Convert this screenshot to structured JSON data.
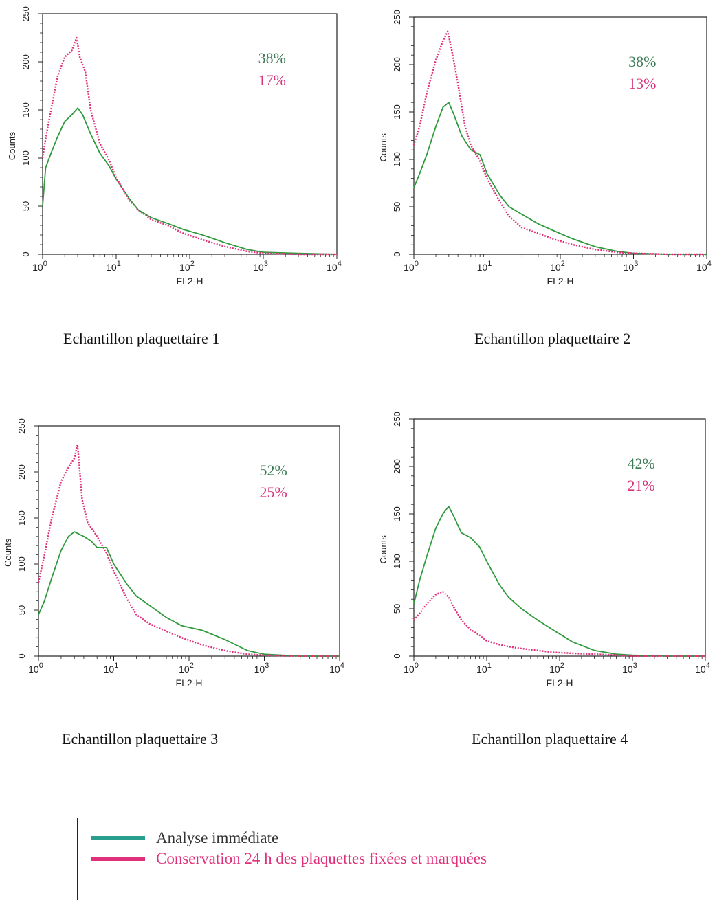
{
  "colors": {
    "green": "#2e9a3c",
    "pink": "#e0307a",
    "green_text": "#3a7a55",
    "pink_text": "#d8337a",
    "axis": "#222222"
  },
  "legend": {
    "items": [
      {
        "label": "Analyse immédiate",
        "color": "#2a9e8c"
      },
      {
        "label": "Conservation 24 h des plaquettes fixées et marquées",
        "color": "#e0307a"
      }
    ]
  },
  "chart_data": [
    {
      "type": "line",
      "caption": "Echantillon plaquettaire 1",
      "xlabel": "FL2-H",
      "ylabel": "Counts",
      "xscale": "log",
      "xlim": [
        1,
        10000
      ],
      "ylim": [
        0,
        250
      ],
      "x_ticks": [
        "10^0",
        "10^1",
        "10^2",
        "10^3",
        "10^4"
      ],
      "y_ticks": [
        "0",
        "50",
        "100",
        "150",
        "200",
        "250"
      ],
      "percentages": [
        {
          "text": "38%",
          "series": "green"
        },
        {
          "text": "17%",
          "series": "pink"
        }
      ],
      "series": [
        {
          "color_key": "green",
          "style": "solid",
          "x": [
            1.0,
            1.1,
            1.3,
            1.6,
            2.0,
            2.5,
            3.0,
            3.5,
            4.5,
            6,
            8,
            10,
            15,
            20,
            30,
            50,
            80,
            150,
            300,
            600,
            1000,
            3000,
            10000
          ],
          "y": [
            50,
            90,
            105,
            122,
            138,
            145,
            152,
            145,
            125,
            105,
            92,
            78,
            58,
            46,
            38,
            32,
            26,
            20,
            12,
            5,
            2,
            1,
            0
          ]
        },
        {
          "color_key": "pink",
          "style": "dotted",
          "x": [
            1.0,
            1.1,
            1.3,
            1.6,
            2.0,
            2.5,
            2.9,
            3.2,
            3.8,
            4.5,
            6,
            8,
            10,
            15,
            20,
            30,
            50,
            80,
            150,
            300,
            600,
            1000,
            3000,
            10000
          ],
          "y": [
            100,
            120,
            150,
            185,
            205,
            212,
            225,
            205,
            190,
            150,
            115,
            98,
            80,
            56,
            46,
            36,
            30,
            22,
            15,
            8,
            3,
            1,
            0,
            0
          ]
        }
      ]
    },
    {
      "type": "line",
      "caption": "Echantillon plaquettaire 2",
      "xlabel": "FL2-H",
      "ylabel": "Counts",
      "xscale": "log",
      "xlim": [
        1,
        10000
      ],
      "ylim": [
        0,
        250
      ],
      "x_ticks": [
        "10^0",
        "10^1",
        "10^2",
        "10^3",
        "10^4"
      ],
      "y_ticks": [
        "0",
        "50",
        "100",
        "150",
        "200",
        "250"
      ],
      "percentages": [
        {
          "text": "38%",
          "series": "green"
        },
        {
          "text": "13%",
          "series": "pink"
        }
      ],
      "series": [
        {
          "color_key": "green",
          "style": "solid",
          "x": [
            1.0,
            1.2,
            1.5,
            2.0,
            2.5,
            3.0,
            3.5,
            4.5,
            6,
            8,
            10,
            15,
            20,
            30,
            50,
            80,
            150,
            300,
            600,
            1000,
            3000,
            10000
          ],
          "y": [
            70,
            85,
            105,
            135,
            155,
            160,
            148,
            125,
            110,
            105,
            85,
            62,
            50,
            42,
            32,
            25,
            16,
            8,
            3,
            1,
            0,
            0
          ]
        },
        {
          "color_key": "pink",
          "style": "dotted",
          "x": [
            1.0,
            1.2,
            1.5,
            2.0,
            2.5,
            2.9,
            3.3,
            4.0,
            5,
            6,
            8,
            10,
            15,
            20,
            30,
            50,
            80,
            150,
            300,
            600,
            1000,
            3000,
            10000
          ],
          "y": [
            115,
            135,
            170,
            205,
            225,
            235,
            215,
            180,
            135,
            115,
            98,
            80,
            55,
            40,
            28,
            22,
            16,
            10,
            5,
            2,
            1,
            0,
            0
          ]
        }
      ]
    },
    {
      "type": "line",
      "caption": "Echantillon plaquettaire 3",
      "xlabel": "FL2-H",
      "ylabel": "Counts",
      "xscale": "log",
      "xlim": [
        1,
        10000
      ],
      "ylim": [
        0,
        250
      ],
      "x_ticks": [
        "10^0",
        "10^1",
        "10^2",
        "10^3",
        "10^4"
      ],
      "y_ticks": [
        "0",
        "50",
        "100",
        "150",
        "200",
        "250"
      ],
      "percentages": [
        {
          "text": "52%",
          "series": "green"
        },
        {
          "text": "25%",
          "series": "pink"
        }
      ],
      "series": [
        {
          "color_key": "green",
          "style": "solid",
          "x": [
            1.0,
            1.2,
            1.5,
            2.0,
            2.5,
            3.0,
            4.0,
            5,
            6,
            8,
            10,
            15,
            20,
            30,
            50,
            80,
            150,
            300,
            600,
            1000,
            3000,
            10000
          ],
          "y": [
            45,
            60,
            85,
            115,
            130,
            135,
            130,
            125,
            118,
            118,
            100,
            78,
            65,
            55,
            42,
            33,
            28,
            18,
            6,
            2,
            0,
            0
          ]
        },
        {
          "color_key": "pink",
          "style": "dotted",
          "x": [
            1.0,
            1.2,
            1.5,
            2.0,
            2.5,
            3.0,
            3.3,
            3.8,
            4.5,
            6,
            8,
            10,
            15,
            20,
            30,
            50,
            80,
            150,
            300,
            600,
            1000,
            3000,
            10000
          ],
          "y": [
            80,
            110,
            150,
            190,
            205,
            215,
            230,
            170,
            145,
            130,
            112,
            92,
            62,
            45,
            35,
            27,
            20,
            12,
            6,
            2,
            1,
            0,
            0
          ]
        }
      ]
    },
    {
      "type": "line",
      "caption": "Echantillon plaquettaire 4",
      "xlabel": "FL2-H",
      "ylabel": "Counts",
      "xscale": "log",
      "xlim": [
        1,
        10000
      ],
      "ylim": [
        0,
        250
      ],
      "x_ticks": [
        "10^0",
        "10^1",
        "10^2",
        "10^3",
        "10^4"
      ],
      "y_ticks": [
        "0",
        "50",
        "100",
        "150",
        "200",
        "250"
      ],
      "percentages": [
        {
          "text": "42%",
          "series": "green"
        },
        {
          "text": "21%",
          "series": "pink"
        }
      ],
      "series": [
        {
          "color_key": "green",
          "style": "solid",
          "x": [
            1.0,
            1.2,
            1.5,
            2.0,
            2.5,
            3.0,
            3.5,
            4.5,
            6,
            8,
            10,
            15,
            20,
            30,
            50,
            80,
            150,
            300,
            600,
            1000,
            3000,
            10000
          ],
          "y": [
            55,
            80,
            105,
            135,
            150,
            158,
            148,
            130,
            125,
            115,
            100,
            75,
            62,
            50,
            38,
            28,
            15,
            6,
            2,
            1,
            0,
            0
          ]
        },
        {
          "color_key": "pink",
          "style": "dotted",
          "x": [
            1.0,
            1.2,
            1.5,
            2.0,
            2.5,
            3.0,
            3.5,
            4.5,
            6,
            8,
            10,
            15,
            20,
            30,
            50,
            80,
            150,
            300,
            600,
            1000,
            3000,
            10000
          ],
          "y": [
            38,
            45,
            55,
            65,
            68,
            62,
            52,
            38,
            28,
            22,
            16,
            12,
            10,
            8,
            6,
            4,
            3,
            2,
            1,
            0,
            0,
            0
          ]
        }
      ]
    }
  ]
}
